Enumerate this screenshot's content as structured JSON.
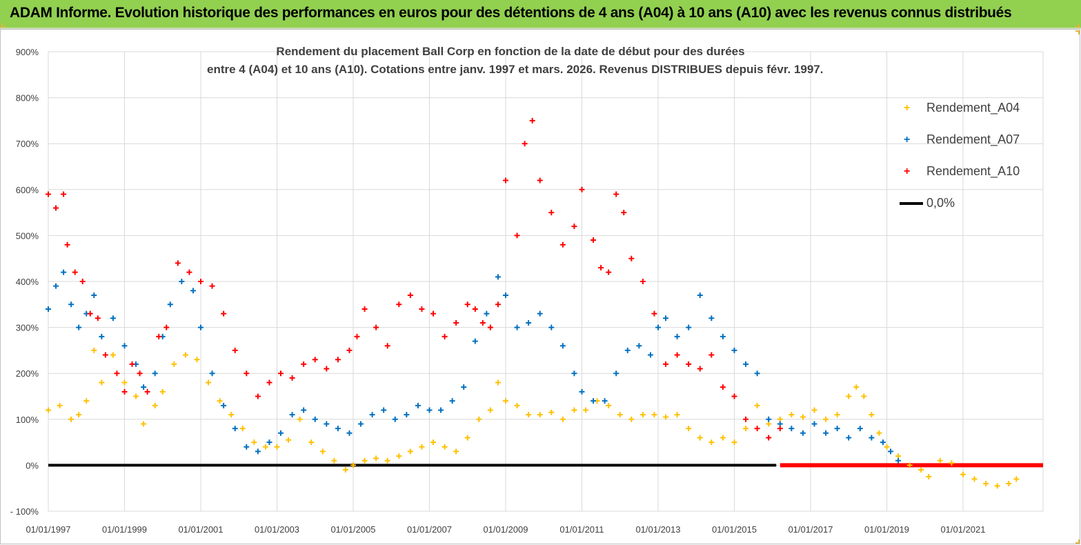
{
  "header": {
    "title": "ADAM Informe. Evolution historique des performances en euros pour des détentions de 4 ans (A04) à 10 ans (A10) avec les revenus connus distribués"
  },
  "chart_data": {
    "type": "scatter",
    "title_lines": [
      "Rendement du placement Ball Corp en fonction de la date de début pour des durées",
      "entre 4 (A04) et 10 ans (A10).  Cotations entre janv. 1997 et mars. 2026. Revenus DISTRIBUES depuis févr. 1997."
    ],
    "xlabel": "",
    "ylabel": "",
    "ylim": [
      -100,
      900
    ],
    "xlim": [
      1997.0,
      2023.1
    ],
    "y_ticks": [
      "900%",
      "800%",
      "700%",
      "600%",
      "500%",
      "400%",
      "300%",
      "200%",
      "100%",
      "0%",
      "- 100%"
    ],
    "x_ticks": [
      "01/01/1997",
      "01/01/1999",
      "01/01/2001",
      "01/01/2003",
      "01/01/2005",
      "01/01/2007",
      "01/01/2009",
      "01/01/2011",
      "01/01/2013",
      "01/01/2015",
      "01/01/2017",
      "01/01/2019",
      "01/01/2021"
    ],
    "grid": true,
    "legend_position": "top-right",
    "zero_line_label": "0,0%",
    "series": [
      {
        "name": "Rendement_A04",
        "color": "#ffc000",
        "x": [
          1997.0,
          1997.3,
          1997.6,
          1997.8,
          1998.0,
          1998.2,
          1998.4,
          1998.7,
          1999.0,
          1999.3,
          1999.5,
          1999.8,
          2000.0,
          2000.3,
          2000.6,
          2000.9,
          2001.2,
          2001.5,
          2001.8,
          2002.1,
          2002.4,
          2002.7,
          2003.0,
          2003.3,
          2003.6,
          2003.9,
          2004.2,
          2004.5,
          2004.8,
          2005.0,
          2005.3,
          2005.6,
          2005.9,
          2006.2,
          2006.5,
          2006.8,
          2007.1,
          2007.4,
          2007.7,
          2008.0,
          2008.3,
          2008.6,
          2008.8,
          2009.0,
          2009.3,
          2009.6,
          2009.9,
          2010.2,
          2010.5,
          2010.8,
          2011.1,
          2011.4,
          2011.7,
          2012.0,
          2012.3,
          2012.6,
          2012.9,
          2013.2,
          2013.5,
          2013.8,
          2014.1,
          2014.4,
          2014.7,
          2015.0,
          2015.3,
          2015.6,
          2015.9,
          2016.2,
          2016.5,
          2016.8,
          2017.1,
          2017.4,
          2017.7,
          2018.0,
          2018.2,
          2018.4,
          2018.6,
          2018.8,
          2019.0,
          2019.3,
          2019.6,
          2019.9,
          2020.1,
          2020.4,
          2020.7,
          2021.0,
          2021.3,
          2021.6,
          2021.9,
          2022.2,
          2022.4
        ],
        "values": [
          120,
          130,
          100,
          110,
          140,
          250,
          180,
          240,
          180,
          150,
          90,
          130,
          160,
          220,
          240,
          230,
          180,
          140,
          110,
          80,
          50,
          40,
          40,
          55,
          100,
          50,
          30,
          10,
          -10,
          0,
          10,
          15,
          10,
          20,
          30,
          40,
          50,
          40,
          30,
          60,
          100,
          120,
          180,
          140,
          130,
          110,
          110,
          115,
          100,
          120,
          120,
          140,
          130,
          110,
          100,
          110,
          110,
          105,
          110,
          80,
          60,
          50,
          60,
          50,
          80,
          130,
          90,
          100,
          110,
          105,
          120,
          100,
          110,
          150,
          170,
          150,
          110,
          70,
          40,
          20,
          0,
          -10,
          -25,
          10,
          5,
          -20,
          -30,
          -40,
          -45,
          -40,
          -30
        ]
      },
      {
        "name": "Rendement_A07",
        "color": "#0070c0",
        "x": [
          1997.0,
          1997.2,
          1997.4,
          1997.6,
          1997.8,
          1998.0,
          1998.2,
          1998.4,
          1998.7,
          1999.0,
          1999.3,
          1999.5,
          1999.8,
          2000.0,
          2000.2,
          2000.5,
          2000.8,
          2001.0,
          2001.3,
          2001.6,
          2001.9,
          2002.2,
          2002.5,
          2002.8,
          2003.1,
          2003.4,
          2003.7,
          2004.0,
          2004.3,
          2004.6,
          2004.9,
          2005.2,
          2005.5,
          2005.8,
          2006.1,
          2006.4,
          2006.7,
          2007.0,
          2007.3,
          2007.6,
          2007.9,
          2008.2,
          2008.5,
          2008.8,
          2009.0,
          2009.3,
          2009.6,
          2009.9,
          2010.2,
          2010.5,
          2010.8,
          2011.0,
          2011.3,
          2011.6,
          2011.9,
          2012.2,
          2012.5,
          2012.8,
          2013.0,
          2013.2,
          2013.5,
          2013.8,
          2014.1,
          2014.4,
          2014.7,
          2015.0,
          2015.3,
          2015.6,
          2015.9,
          2016.2,
          2016.5,
          2016.8,
          2017.1,
          2017.4,
          2017.7,
          2018.0,
          2018.3,
          2018.6,
          2018.9,
          2019.1,
          2019.3
        ],
        "values": [
          340,
          390,
          420,
          350,
          300,
          330,
          370,
          280,
          320,
          260,
          220,
          170,
          200,
          280,
          350,
          400,
          380,
          300,
          200,
          130,
          80,
          40,
          30,
          50,
          70,
          110,
          120,
          100,
          90,
          80,
          70,
          90,
          110,
          120,
          100,
          110,
          130,
          120,
          120,
          140,
          170,
          270,
          330,
          410,
          370,
          300,
          310,
          330,
          300,
          260,
          200,
          160,
          140,
          140,
          200,
          250,
          260,
          240,
          300,
          320,
          280,
          300,
          370,
          320,
          280,
          250,
          220,
          200,
          100,
          90,
          80,
          70,
          90,
          70,
          80,
          60,
          80,
          60,
          50,
          30,
          10
        ]
      },
      {
        "name": "Rendement_A10",
        "color": "#ff0000",
        "x": [
          1997.0,
          1997.2,
          1997.4,
          1997.5,
          1997.7,
          1997.9,
          1998.1,
          1998.3,
          1998.5,
          1998.8,
          1999.0,
          1999.2,
          1999.4,
          1999.6,
          1999.9,
          2000.1,
          2000.4,
          2000.7,
          2001.0,
          2001.3,
          2001.6,
          2001.9,
          2002.2,
          2002.5,
          2002.8,
          2003.1,
          2003.4,
          2003.7,
          2004.0,
          2004.3,
          2004.6,
          2004.9,
          2005.1,
          2005.3,
          2005.6,
          2005.9,
          2006.2,
          2006.5,
          2006.8,
          2007.1,
          2007.4,
          2007.7,
          2008.0,
          2008.2,
          2008.4,
          2008.6,
          2008.8,
          2009.0,
          2009.3,
          2009.5,
          2009.7,
          2009.9,
          2010.2,
          2010.5,
          2010.8,
          2011.0,
          2011.3,
          2011.5,
          2011.7,
          2011.9,
          2012.1,
          2012.3,
          2012.6,
          2012.9,
          2013.2,
          2013.5,
          2013.8,
          2014.1,
          2014.4,
          2014.7,
          2015.0,
          2015.3,
          2015.6,
          2015.9,
          2016.2
        ],
        "values": [
          590,
          560,
          590,
          480,
          420,
          400,
          330,
          320,
          240,
          200,
          160,
          220,
          200,
          160,
          280,
          300,
          440,
          420,
          400,
          390,
          330,
          250,
          200,
          150,
          180,
          200,
          190,
          220,
          230,
          210,
          230,
          250,
          280,
          340,
          300,
          260,
          350,
          370,
          340,
          330,
          280,
          310,
          350,
          340,
          310,
          300,
          350,
          620,
          500,
          700,
          750,
          620,
          550,
          480,
          520,
          600,
          490,
          430,
          420,
          590,
          550,
          450,
          400,
          330,
          220,
          240,
          220,
          210,
          240,
          170,
          150,
          100,
          80,
          60,
          80
        ]
      },
      {
        "name": "0,0%",
        "color": "#000000",
        "x": [
          1997.0,
          2016.1
        ],
        "values": [
          0,
          0
        ]
      }
    ],
    "a10_zero_segment": {
      "color": "#ff0000",
      "x": [
        2016.2,
        2023.1
      ],
      "values": [
        0,
        0
      ]
    }
  },
  "legend": {
    "items": [
      {
        "label": "Rendement_A04",
        "color": "#ffc000",
        "symbol": "+"
      },
      {
        "label": "Rendement_A07",
        "color": "#0070c0",
        "symbol": "+"
      },
      {
        "label": "Rendement_A10",
        "color": "#ff0000",
        "symbol": "+"
      },
      {
        "label": "0,0%",
        "color": "#000000",
        "symbol": "line"
      }
    ]
  }
}
